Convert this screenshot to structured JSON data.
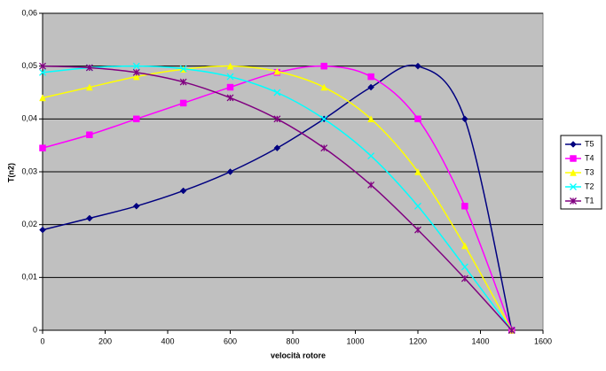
{
  "chart_data": {
    "type": "line",
    "x_label": "velocità rotore",
    "y_label": "T(n2)",
    "x": [
      0,
      150,
      300,
      450,
      600,
      750,
      900,
      1050,
      1200,
      1350,
      1500
    ],
    "series": [
      {
        "name": "T5",
        "color": "#000080",
        "marker": "diamond",
        "values": [
          0.019,
          0.0212,
          0.0235,
          0.0264,
          0.03,
          0.0345,
          0.04,
          0.046,
          0.05,
          0.04,
          0
        ]
      },
      {
        "name": "T4",
        "color": "#ff00ff",
        "marker": "square",
        "values": [
          0.0345,
          0.037,
          0.04,
          0.043,
          0.046,
          0.0488,
          0.05,
          0.048,
          0.04,
          0.0235,
          0
        ]
      },
      {
        "name": "T3",
        "color": "#ffff00",
        "marker": "triangle",
        "values": [
          0.044,
          0.046,
          0.048,
          0.0494,
          0.05,
          0.049,
          0.046,
          0.04,
          0.03,
          0.016,
          0
        ]
      },
      {
        "name": "T2",
        "color": "#00ffff",
        "marker": "x",
        "values": [
          0.0488,
          0.0497,
          0.05,
          0.0495,
          0.048,
          0.045,
          0.04,
          0.033,
          0.0235,
          0.012,
          0
        ]
      },
      {
        "name": "T1",
        "color": "#800080",
        "marker": "star",
        "values": [
          0.05,
          0.0497,
          0.0488,
          0.047,
          0.044,
          0.04,
          0.0345,
          0.0275,
          0.019,
          0.0098,
          0
        ]
      }
    ],
    "xlim": [
      0,
      1600
    ],
    "xticks": [
      0,
      200,
      400,
      600,
      800,
      1000,
      1200,
      1400,
      1600
    ],
    "ylim": [
      0,
      0.06
    ],
    "yticks": [
      0,
      {
        "value": 0.01,
        "label": "0,01"
      },
      {
        "value": 0.02,
        "label": "0,02"
      },
      {
        "value": 0.03,
        "label": "0,03"
      },
      {
        "value": 0.04,
        "label": "0,04"
      },
      {
        "value": 0.05,
        "label": "0,05"
      },
      {
        "value": 0.06,
        "label": "0,06"
      }
    ],
    "grid": true,
    "legend": "right",
    "smooth": true
  }
}
